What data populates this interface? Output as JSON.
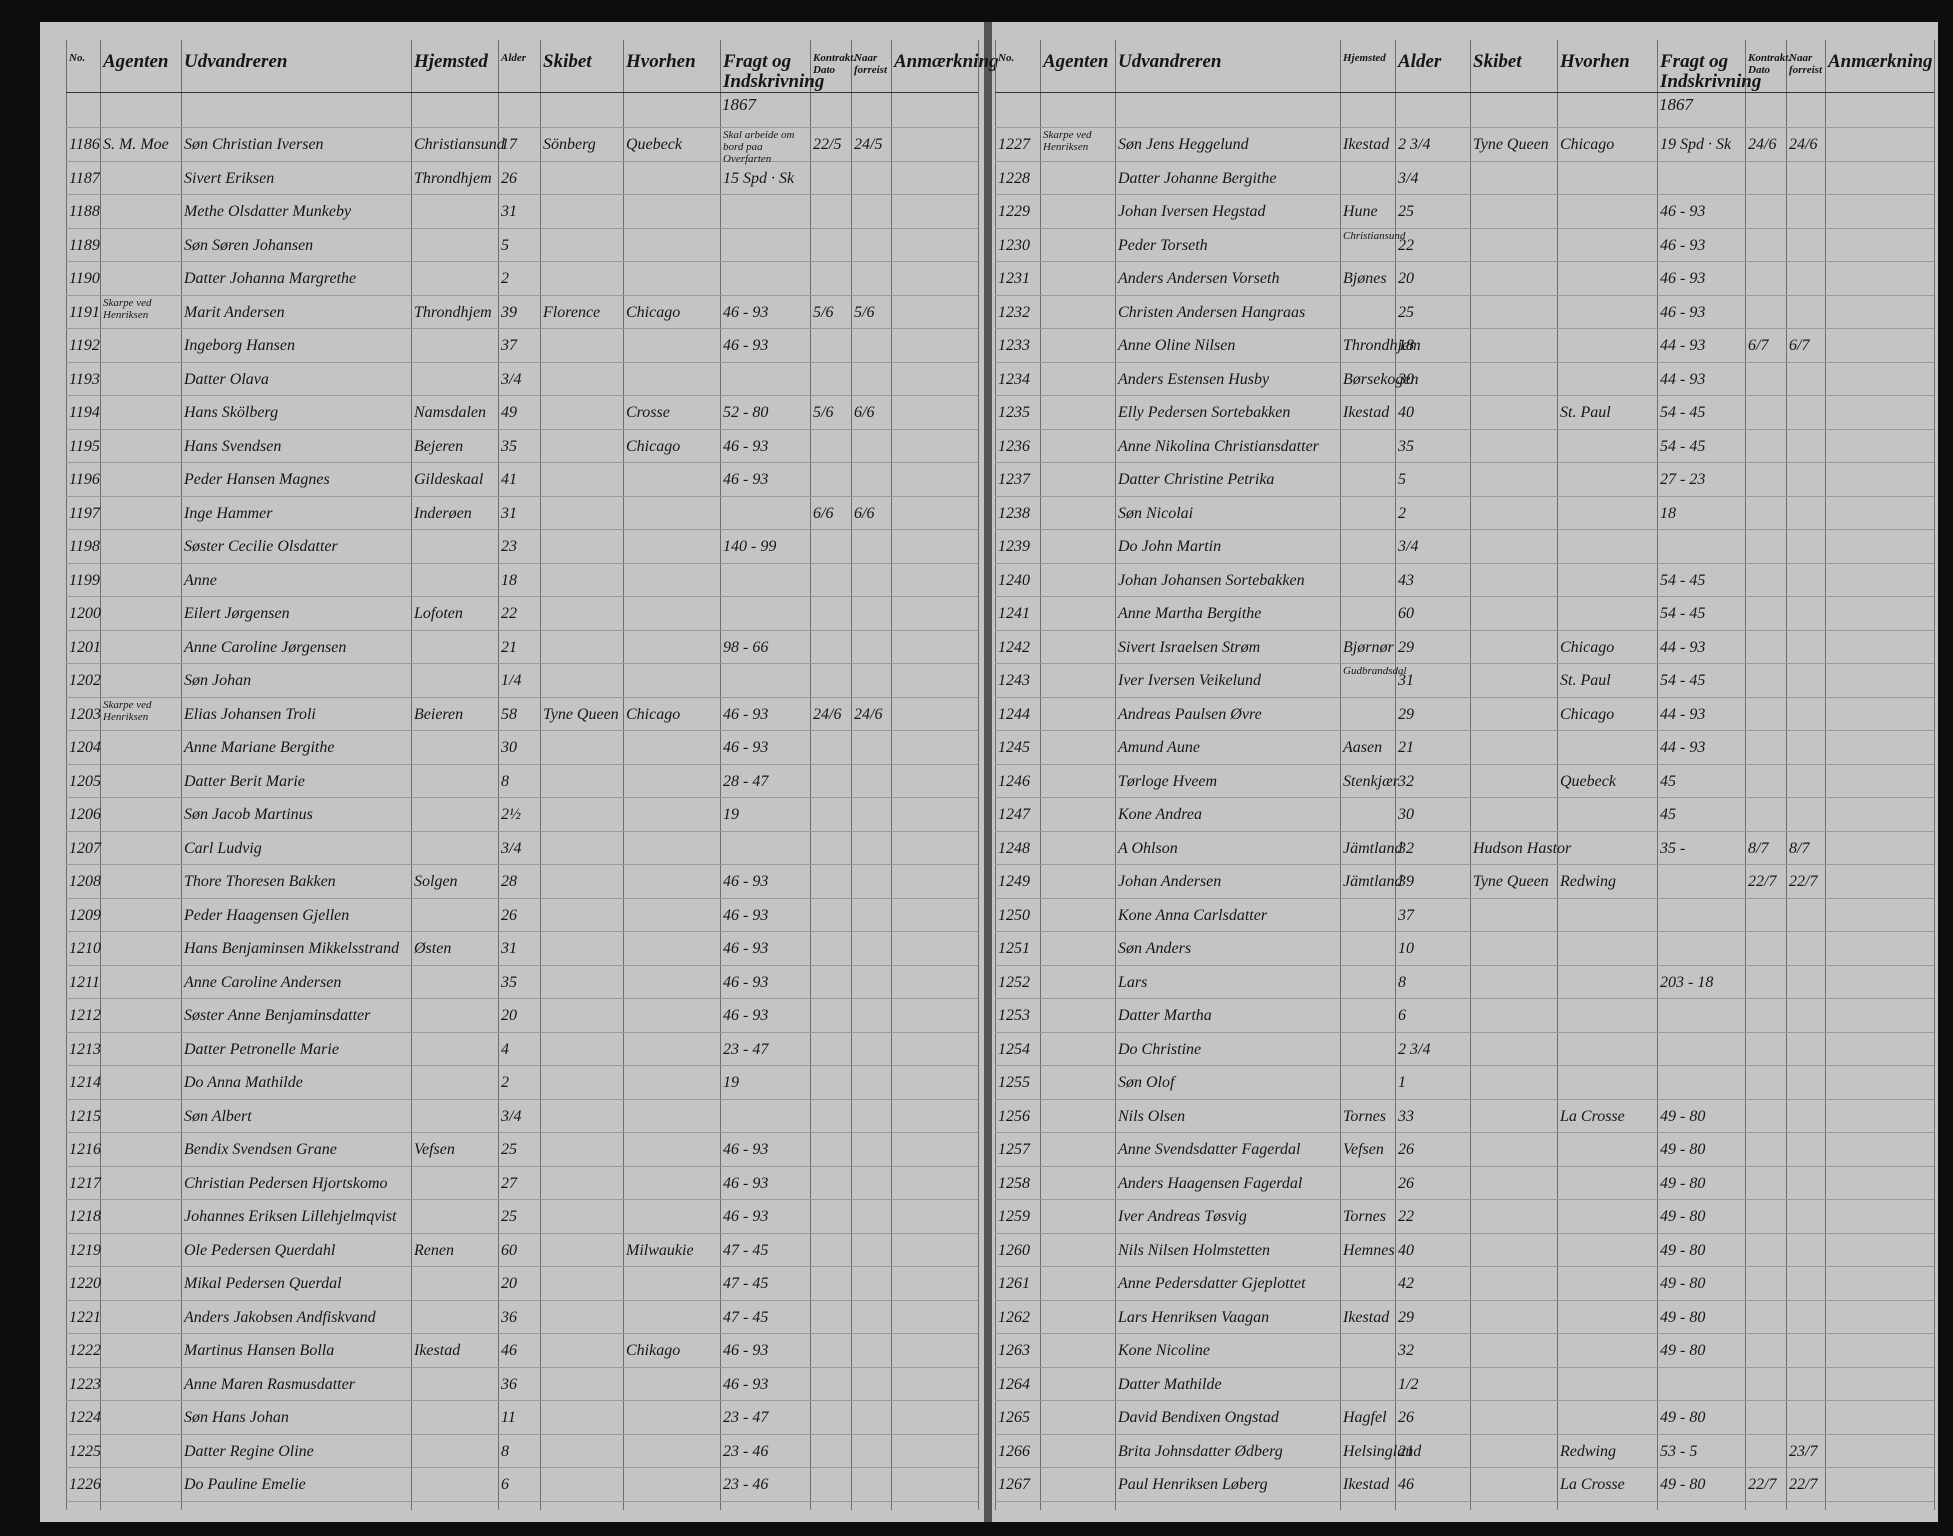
{
  "pages": [
    {
      "year": "1867",
      "header": {
        "no": "No.",
        "agent": "Agenten",
        "emigrant": "Udvandreren",
        "home": "Hjemsted",
        "age": "Alder",
        "ship": "Skibet",
        "dest": "Hvorhen",
        "fare": "Fragt og Indskrivning",
        "contract": "Kontrakt. Dato",
        "departed": "Naar forreist",
        "remark": "Anmærkning"
      },
      "rows": [
        {
          "no": "1186",
          "agent": "S. M. Moe",
          "emigrant": "Søn Christian Iversen",
          "home": "Christiansund",
          "age": "17",
          "ship": "Sönberg",
          "dest": "Quebeck",
          "fare": "Skal arbeide om bord paa Overfarten",
          "contract": "22/5",
          "departed": "24/5"
        },
        {
          "no": "1187",
          "emigrant": "Sivert Eriksen",
          "home": "Throndhjem",
          "age": "26",
          "fare": "15 Spd · Sk"
        },
        {
          "no": "1188",
          "emigrant": "Methe Olsdatter Munkeby",
          "age": "31"
        },
        {
          "no": "1189",
          "emigrant": "Søn Søren Johansen",
          "age": "5"
        },
        {
          "no": "1190",
          "emigrant": "Datter Johanna Margrethe",
          "age": "2"
        },
        {
          "no": "1191",
          "agent": "Skarpe ved Henriksen",
          "emigrant": "Marit Andersen",
          "home": "Throndhjem",
          "age": "39",
          "ship": "Florence",
          "dest": "Chicago",
          "fare": "46 - 93",
          "contract": "5/6",
          "departed": "5/6"
        },
        {
          "no": "1192",
          "emigrant": "Ingeborg Hansen",
          "age": "37",
          "fare": "46 - 93"
        },
        {
          "no": "1193",
          "emigrant": "Datter Olava",
          "age": "3/4"
        },
        {
          "no": "1194",
          "emigrant": "Hans Skölberg",
          "home": "Namsdalen",
          "age": "49",
          "dest": "Crosse",
          "fare": "52 - 80",
          "contract": "5/6",
          "departed": "6/6"
        },
        {
          "no": "1195",
          "emigrant": "Hans Svendsen",
          "home": "Bejeren",
          "age": "35",
          "dest": "Chicago",
          "fare": "46 - 93"
        },
        {
          "no": "1196",
          "emigrant": "Peder Hansen Magnes",
          "home": "Gildeskaal",
          "age": "41",
          "fare": "46 - 93"
        },
        {
          "no": "1197",
          "emigrant": "Inge Hammer",
          "home": "Inderøen",
          "age": "31",
          "contract": "6/6",
          "departed": "6/6"
        },
        {
          "no": "1198",
          "emigrant": "Søster Cecilie Olsdatter",
          "age": "23",
          "fare": "140 - 99"
        },
        {
          "no": "1199",
          "emigrant": "Anne",
          "age": "18"
        },
        {
          "no": "1200",
          "emigrant": "Eilert Jørgensen",
          "home": "Lofoten",
          "age": "22"
        },
        {
          "no": "1201",
          "emigrant": "Anne Caroline Jørgensen",
          "age": "21",
          "fare": "98 - 66"
        },
        {
          "no": "1202",
          "emigrant": "Søn Johan",
          "age": "1/4"
        },
        {
          "no": "1203",
          "agent": "Skarpe ved Henriksen",
          "emigrant": "Elias Johansen Troli",
          "home": "Beieren",
          "age": "58",
          "ship": "Tyne Queen",
          "dest": "Chicago",
          "fare": "46 - 93",
          "contract": "24/6",
          "departed": "24/6"
        },
        {
          "no": "1204",
          "emigrant": "Anne Mariane Bergithe",
          "age": "30",
          "fare": "46 - 93"
        },
        {
          "no": "1205",
          "emigrant": "Datter Berit Marie",
          "age": "8",
          "fare": "28 - 47"
        },
        {
          "no": "1206",
          "emigrant": "Søn Jacob Martinus",
          "age": "2½",
          "fare": "19"
        },
        {
          "no": "1207",
          "emigrant": "Carl Ludvig",
          "age": "3/4"
        },
        {
          "no": "1208",
          "emigrant": "Thore Thoresen Bakken",
          "home": "Solgen",
          "age": "28",
          "fare": "46 - 93"
        },
        {
          "no": "1209",
          "emigrant": "Peder Haagensen Gjellen",
          "age": "26",
          "fare": "46 - 93"
        },
        {
          "no": "1210",
          "emigrant": "Hans Benjaminsen Mikkelsstrand",
          "home": "Østen",
          "age": "31",
          "fare": "46 - 93"
        },
        {
          "no": "1211",
          "emigrant": "Anne Caroline Andersen",
          "age": "35",
          "fare": "46 - 93"
        },
        {
          "no": "1212",
          "emigrant": "Søster Anne Benjaminsdatter",
          "age": "20",
          "fare": "46 - 93"
        },
        {
          "no": "1213",
          "emigrant": "Datter Petronelle Marie",
          "age": "4",
          "fare": "23 - 47"
        },
        {
          "no": "1214",
          "emigrant": "Do Anna Mathilde",
          "age": "2",
          "fare": "19"
        },
        {
          "no": "1215",
          "emigrant": "Søn Albert",
          "age": "3/4"
        },
        {
          "no": "1216",
          "emigrant": "Bendix Svendsen Grane",
          "home": "Vefsen",
          "age": "25",
          "fare": "46 - 93"
        },
        {
          "no": "1217",
          "emigrant": "Christian Pedersen Hjortskomo",
          "age": "27",
          "fare": "46 - 93"
        },
        {
          "no": "1218",
          "emigrant": "Johannes Eriksen Lillehjelmqvist",
          "age": "25",
          "fare": "46 - 93"
        },
        {
          "no": "1219",
          "emigrant": "Ole Pedersen Querdahl",
          "home": "Renen",
          "age": "60",
          "dest": "Milwaukie",
          "fare": "47 - 45"
        },
        {
          "no": "1220",
          "emigrant": "Mikal Pedersen Querdal",
          "age": "20",
          "fare": "47 - 45"
        },
        {
          "no": "1221",
          "emigrant": "Anders Jakobsen Andfiskvand",
          "age": "36",
          "fare": "47 - 45"
        },
        {
          "no": "1222",
          "emigrant": "Martinus Hansen Bolla",
          "home": "Ikestad",
          "age": "46",
          "dest": "Chikago",
          "fare": "46 - 93"
        },
        {
          "no": "1223",
          "emigrant": "Anne Maren Rasmusdatter",
          "age": "36",
          "fare": "46 - 93"
        },
        {
          "no": "1224",
          "emigrant": "Søn Hans Johan",
          "age": "11",
          "fare": "23 - 47"
        },
        {
          "no": "1225",
          "emigrant": "Datter Regine Oline",
          "age": "8",
          "fare": "23 - 46"
        },
        {
          "no": "1226",
          "emigrant": "Do Pauline Emelie",
          "age": "6",
          "fare": "23 - 46"
        }
      ]
    },
    {
      "year": "1867",
      "header": {
        "no": "No.",
        "agent": "Agenten",
        "emigrant": "Udvandreren",
        "home": "Hjemsted",
        "age": "Alder",
        "ship": "Skibet",
        "dest": "Hvorhen",
        "fare": "Fragt og Indskrivning",
        "contract": "Kontrakt. Dato",
        "departed": "Naar forreist",
        "remark": "Anmærkning"
      },
      "rows": [
        {
          "no": "1227",
          "agent": "Skarpe ved Henriksen",
          "emigrant": "Søn Jens Heggelund",
          "home": "Ikestad",
          "age": "2 3/4",
          "ship": "Tyne Queen",
          "dest": "Chicago",
          "fare": "19 Spd · Sk",
          "contract": "24/6",
          "departed": "24/6"
        },
        {
          "no": "1228",
          "emigrant": "Datter Johanne Bergithe",
          "age": "3/4"
        },
        {
          "no": "1229",
          "emigrant": "Johan Iversen Hegstad",
          "home": "Hune",
          "age": "25",
          "fare": "46 - 93"
        },
        {
          "no": "1230",
          "emigrant": "Peder Torseth",
          "home": "Christiansund",
          "age": "22",
          "fare": "46 - 93"
        },
        {
          "no": "1231",
          "emigrant": "Anders Andersen Vorseth",
          "home": "Bjønes",
          "age": "20",
          "fare": "46 - 93"
        },
        {
          "no": "1232",
          "emigrant": "Christen Andersen Hangraas",
          "age": "25",
          "fare": "46 - 93"
        },
        {
          "no": "1233",
          "emigrant": "Anne Oline Nilsen",
          "home": "Throndhjem",
          "age": "18",
          "fare": "44 - 93",
          "contract": "6/7",
          "departed": "6/7"
        },
        {
          "no": "1234",
          "emigrant": "Anders Estensen Husby",
          "home": "Børsekogen",
          "age": "30",
          "fare": "44 - 93"
        },
        {
          "no": "1235",
          "emigrant": "Elly Pedersen Sortebakken",
          "home": "Ikestad",
          "age": "40",
          "dest": "St. Paul",
          "fare": "54 - 45"
        },
        {
          "no": "1236",
          "emigrant": "Anne Nikolina Christiansdatter",
          "age": "35",
          "fare": "54 - 45"
        },
        {
          "no": "1237",
          "emigrant": "Datter Christine Petrika",
          "age": "5",
          "fare": "27 - 23"
        },
        {
          "no": "1238",
          "emigrant": "Søn Nicolai",
          "age": "2",
          "fare": "18"
        },
        {
          "no": "1239",
          "emigrant": "Do John Martin",
          "age": "3/4"
        },
        {
          "no": "1240",
          "emigrant": "Johan Johansen Sortebakken",
          "age": "43",
          "fare": "54 - 45"
        },
        {
          "no": "1241",
          "emigrant": "Anne Martha Bergithe",
          "age": "60",
          "fare": "54 - 45"
        },
        {
          "no": "1242",
          "emigrant": "Sivert Israelsen Strøm",
          "home": "Bjørnør",
          "age": "29",
          "dest": "Chicago",
          "fare": "44 - 93"
        },
        {
          "no": "1243",
          "emigrant": "Iver Iversen Veikelund",
          "home": "Gudbrandsdal",
          "age": "31",
          "dest": "St. Paul",
          "fare": "54 - 45"
        },
        {
          "no": "1244",
          "emigrant": "Andreas Paulsen Øvre",
          "age": "29",
          "dest": "Chicago",
          "fare": "44 - 93"
        },
        {
          "no": "1245",
          "emigrant": "Amund Aune",
          "home": "Aasen",
          "age": "21",
          "fare": "44 - 93"
        },
        {
          "no": "1246",
          "emigrant": "Tørloge Hveem",
          "home": "Stenkjær",
          "age": "32",
          "dest": "Quebeck",
          "fare": "45"
        },
        {
          "no": "1247",
          "emigrant": "Kone Andrea",
          "age": "30",
          "fare": "45"
        },
        {
          "no": "1248",
          "emigrant": "A Ohlson",
          "home": "Jämtland",
          "age": "32",
          "ship": "Hudson Hastor",
          "fare": "35 -",
          "contract": "8/7",
          "departed": "8/7"
        },
        {
          "no": "1249",
          "emigrant": "Johan Andersen",
          "home": "Jämtland",
          "age": "39",
          "ship": "Tyne Queen",
          "dest": "Redwing",
          "contract": "22/7",
          "departed": "22/7"
        },
        {
          "no": "1250",
          "emigrant": "Kone Anna Carlsdatter",
          "age": "37"
        },
        {
          "no": "1251",
          "emigrant": "Søn Anders",
          "age": "10"
        },
        {
          "no": "1252",
          "emigrant": "Lars",
          "age": "8",
          "fare": "203 - 18"
        },
        {
          "no": "1253",
          "emigrant": "Datter Martha",
          "age": "6"
        },
        {
          "no": "1254",
          "emigrant": "Do Christine",
          "age": "2 3/4"
        },
        {
          "no": "1255",
          "emigrant": "Søn Olof",
          "age": "1"
        },
        {
          "no": "1256",
          "emigrant": "Nils Olsen",
          "home": "Tornes",
          "age": "33",
          "dest": "La Crosse",
          "fare": "49 - 80"
        },
        {
          "no": "1257",
          "emigrant": "Anne Svendsdatter Fagerdal",
          "home": "Vefsen",
          "age": "26",
          "fare": "49 - 80"
        },
        {
          "no": "1258",
          "emigrant": "Anders Haagensen Fagerdal",
          "age": "26",
          "fare": "49 - 80"
        },
        {
          "no": "1259",
          "emigrant": "Iver Andreas Tøsvig",
          "home": "Tornes",
          "age": "22",
          "fare": "49 - 80"
        },
        {
          "no": "1260",
          "emigrant": "Nils Nilsen Holmstetten",
          "home": "Hemnes",
          "age": "40",
          "fare": "49 - 80"
        },
        {
          "no": "1261",
          "emigrant": "Anne Pedersdatter Gjeplottet",
          "age": "42",
          "fare": "49 - 80"
        },
        {
          "no": "1262",
          "emigrant": "Lars Henriksen Vaagan",
          "home": "Ikestad",
          "age": "29",
          "fare": "49 - 80"
        },
        {
          "no": "1263",
          "emigrant": "Kone Nicoline",
          "age": "32",
          "fare": "49 - 80"
        },
        {
          "no": "1264",
          "emigrant": "Datter Mathilde",
          "age": "1/2"
        },
        {
          "no": "1265",
          "emigrant": "David Bendixen Ongstad",
          "home": "Hagfel",
          "age": "26",
          "fare": "49 - 80"
        },
        {
          "no": "1266",
          "emigrant": "Brita Johnsdatter Ødberg",
          "home": "Helsingland",
          "age": "21",
          "dest": "Redwing",
          "fare": "53 - 5",
          "departed": "23/7"
        },
        {
          "no": "1267",
          "emigrant": "Paul Henriksen Løberg",
          "home": "Ikestad",
          "age": "46",
          "dest": "La Crosse",
          "fare": "49 - 80",
          "contract": "22/7",
          "departed": "22/7"
        }
      ]
    }
  ]
}
